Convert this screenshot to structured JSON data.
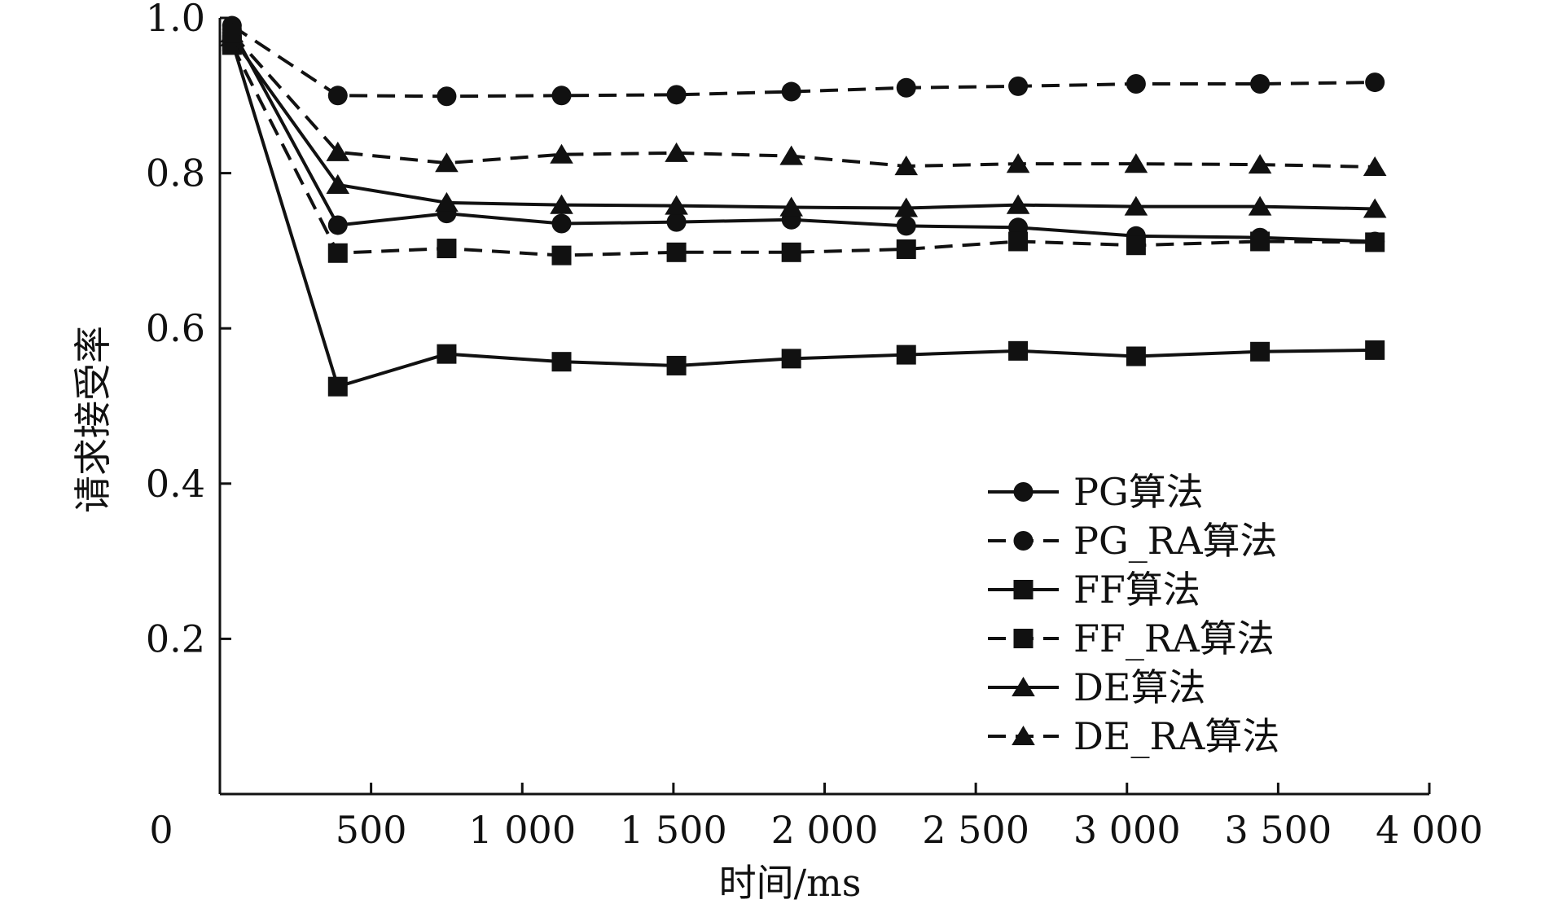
{
  "chart_data": {
    "type": "line",
    "xlabel": "时间/ms",
    "ylabel": "请求接受率",
    "xlim": [
      0,
      4000
    ],
    "ylim": [
      0,
      1.0
    ],
    "x_ticks": [
      500,
      1000,
      1500,
      2000,
      2500,
      3000,
      3500,
      4000
    ],
    "x_tick_labels": [
      "500",
      "1 000",
      "1 500",
      "2 000",
      "2 500",
      "3 000",
      "3 500",
      "4 000"
    ],
    "y_ticks": [
      0.2,
      0.4,
      0.6,
      0.8,
      1.0
    ],
    "y_tick_labels": [
      "0.2",
      "0.4",
      "0.6",
      "0.8",
      "1.0"
    ],
    "origin_label": "0",
    "grid": false,
    "legend_position": "bottom-right",
    "x": [
      40,
      390,
      750,
      1130,
      1510,
      1890,
      2270,
      2640,
      3030,
      3440,
      3820
    ],
    "series": [
      {
        "name": "PG算法",
        "marker": "circle",
        "dash": "solid",
        "values": [
          0.985,
          0.733,
          0.748,
          0.735,
          0.737,
          0.74,
          0.732,
          0.73,
          0.719,
          0.717,
          0.712
        ]
      },
      {
        "name": "PG_RA算法",
        "marker": "circle",
        "dash": "dashed",
        "values": [
          0.99,
          0.9,
          0.899,
          0.9,
          0.901,
          0.905,
          0.91,
          0.912,
          0.915,
          0.915,
          0.917
        ]
      },
      {
        "name": "FF算法",
        "marker": "square",
        "dash": "solid",
        "values": [
          0.97,
          0.525,
          0.567,
          0.557,
          0.552,
          0.561,
          0.566,
          0.571,
          0.564,
          0.57,
          0.572
        ]
      },
      {
        "name": "FF_RA算法",
        "marker": "square",
        "dash": "dashed",
        "values": [
          0.965,
          0.697,
          0.703,
          0.694,
          0.698,
          0.698,
          0.702,
          0.712,
          0.707,
          0.712,
          0.711
        ]
      },
      {
        "name": "DE算法",
        "marker": "triangle",
        "dash": "solid",
        "values": [
          0.975,
          0.785,
          0.762,
          0.759,
          0.758,
          0.756,
          0.755,
          0.759,
          0.757,
          0.757,
          0.754
        ]
      },
      {
        "name": "DE_RA算法",
        "marker": "triangle",
        "dash": "dashed",
        "values": [
          0.98,
          0.827,
          0.813,
          0.824,
          0.826,
          0.822,
          0.809,
          0.812,
          0.812,
          0.811,
          0.808
        ]
      }
    ]
  }
}
